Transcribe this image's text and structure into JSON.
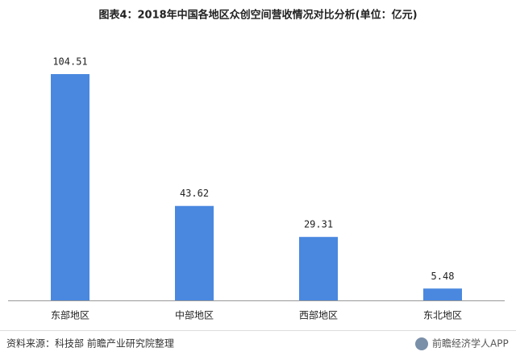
{
  "chart_data": {
    "type": "bar",
    "title": "图表4：2018年中国各地区众创空间营收情况对比分析(单位：亿元)",
    "categories": [
      "东部地区",
      "中部地区",
      "西部地区",
      "东北地区"
    ],
    "values": [
      104.51,
      43.62,
      29.31,
      5.48
    ],
    "color": "#4a88e0",
    "source": "资料来源：科技部 前瞻产业研究院整理",
    "watermark": "前瞻经济学人APP"
  }
}
